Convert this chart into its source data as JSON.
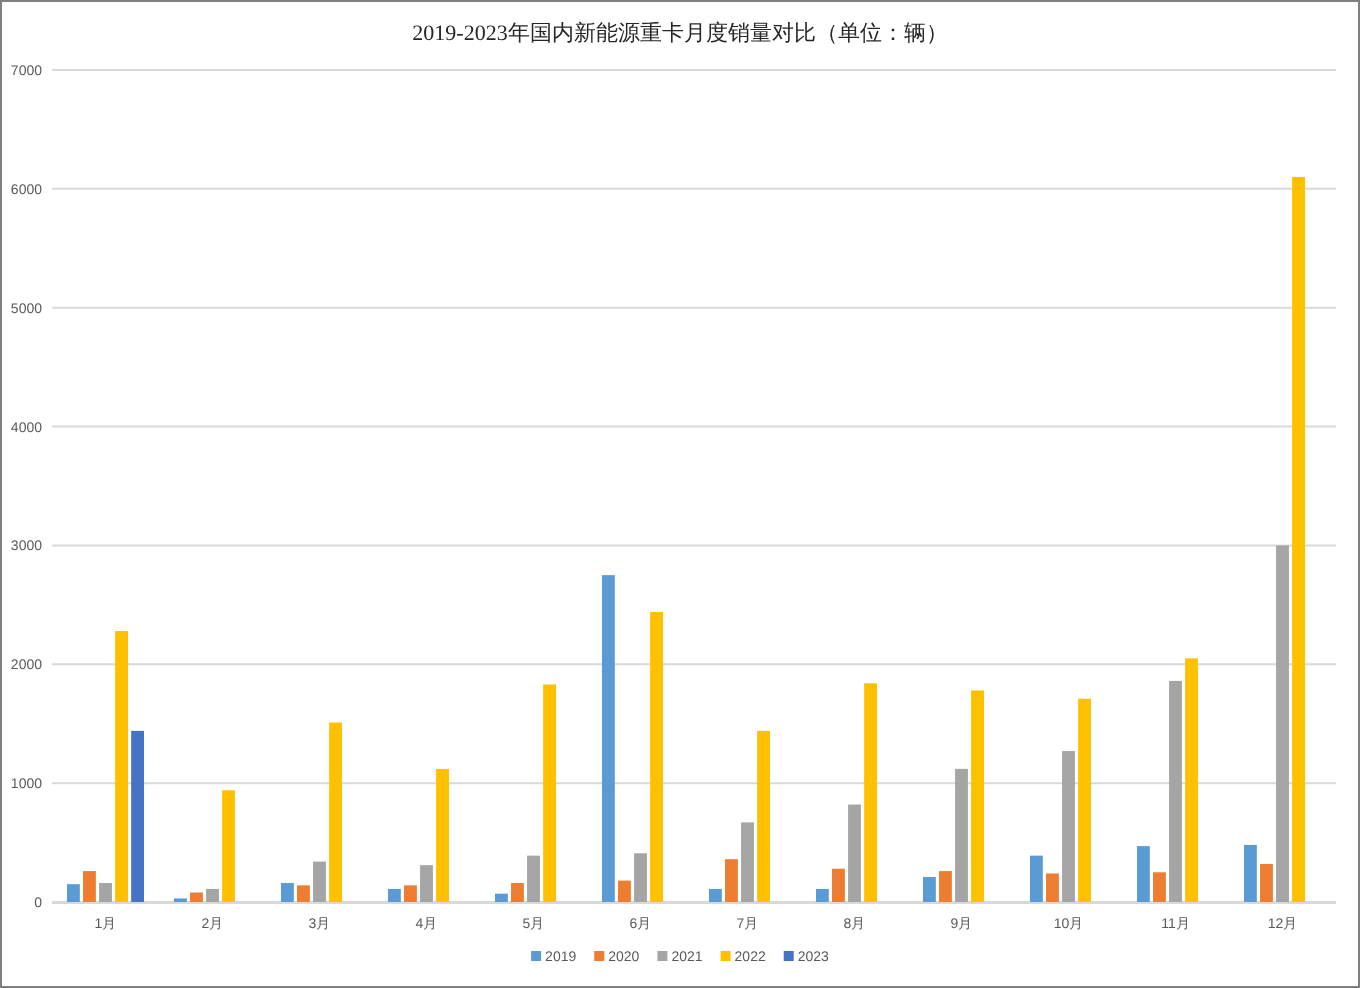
{
  "chart_data": {
    "type": "bar",
    "title": "2019-2023年国内新能源重卡月度销量对比（单位：辆）",
    "categories": [
      "1月",
      "2月",
      "3月",
      "4月",
      "5月",
      "6月",
      "7月",
      "8月",
      "9月",
      "10月",
      "11月",
      "12月"
    ],
    "series": [
      {
        "name": "2019",
        "color": "#5b9bd5",
        "values": [
          150,
          30,
          160,
          110,
          70,
          2750,
          110,
          110,
          210,
          390,
          470,
          480
        ]
      },
      {
        "name": "2020",
        "color": "#ed7d31",
        "values": [
          260,
          80,
          140,
          140,
          160,
          180,
          360,
          280,
          260,
          240,
          250,
          320
        ]
      },
      {
        "name": "2021",
        "color": "#a5a5a5",
        "values": [
          160,
          110,
          340,
          310,
          390,
          410,
          670,
          820,
          1120,
          1270,
          1860,
          3000
        ]
      },
      {
        "name": "2022",
        "color": "#ffc000",
        "values": [
          2280,
          940,
          1510,
          1120,
          1830,
          2440,
          1440,
          1840,
          1780,
          1710,
          2050,
          6100
        ]
      },
      {
        "name": "2023",
        "color": "#4472c4",
        "values": [
          1440,
          null,
          null,
          null,
          null,
          null,
          null,
          null,
          null,
          null,
          null,
          null
        ]
      }
    ],
    "ylim": [
      0,
      7000
    ],
    "yticks": [
      0,
      1000,
      2000,
      3000,
      4000,
      5000,
      6000,
      7000
    ],
    "grid": "y",
    "legend": "bottom"
  }
}
